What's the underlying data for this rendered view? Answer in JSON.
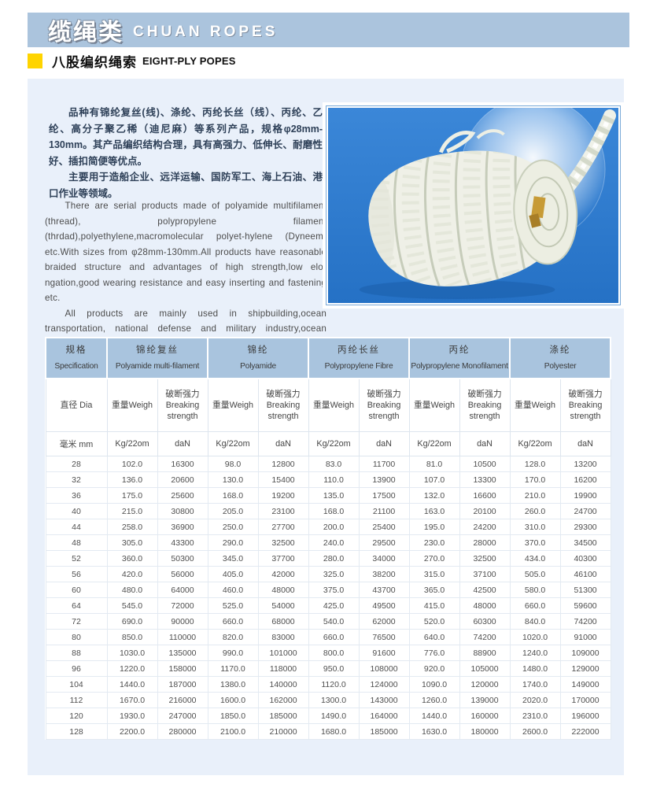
{
  "banner": {
    "title_zh": "缆绳类",
    "title_en": "CHUAN ROPES"
  },
  "section": {
    "title_zh": "八股编织绳索",
    "title_en": "EIGHT-PLY POPES"
  },
  "intro_zh": {
    "p1": "品种有锦纶复丝(线)、涤纶、丙纶长丝（线）、丙纶、乙纶、高分子聚乙稀（迪尼麻）等系列产品，规格φ28mm-130mm。其产品编织结构合理，具有高强力、低伸长、耐磨性好、插扣简便等优点。",
    "p2": "主要用于造船企业、远洋运输、国防军工、海上石油、港口作业等领域。"
  },
  "intro_en": {
    "p1": "There are serial products made of polyamide multifilament (thread), polypropylene filament (thrdad),polyethylene,macromolecular polyet-hylene (Dyneem) etc.With sizes from φ28mm-130mm.All products have reasonable braided structure and advantages of high strength,low elo-ngation,good wearing resistance and easy inserting and fastening etc.",
    "p2": "All products are mainly used in shipbuilding,ocean transportation, national defense and military industry,ocean petroleum,harbor works etc."
  },
  "photo": {
    "description": "coil of white eight-ply braided rope on blue background"
  },
  "colors": {
    "banner_bg": "#abc4dd",
    "panel_bg": "#e9f0fa",
    "table_header_bg": "#a9c4de",
    "marker_yellow": "#ffd400",
    "photo_blue": "#2e7ed2"
  },
  "table": {
    "spec_header": {
      "zh": "规格",
      "en": "Specification"
    },
    "groups": [
      {
        "zh": "锦纶复丝",
        "en": "Polyamide multi-filament"
      },
      {
        "zh": "锦纶",
        "en": "Polyamide"
      },
      {
        "zh": "丙纶长丝",
        "en": "Polypropylene Fibre"
      },
      {
        "zh": "丙纶",
        "en": "Polypropylene Monofilament"
      },
      {
        "zh": "涤纶",
        "en": "Polyester"
      }
    ],
    "sub_headers": {
      "dia": "直径 Dia",
      "weight": "重量Weigh",
      "breaking_zh": "破断强力",
      "breaking_en": "Breaking strength"
    },
    "units": {
      "dia": "毫米 mm",
      "weight": "Kg/22om",
      "breaking": "daN"
    },
    "rows": [
      [
        "28",
        "102.0",
        "16300",
        "98.0",
        "12800",
        "83.0",
        "11700",
        "81.0",
        "10500",
        "128.0",
        "13200"
      ],
      [
        "32",
        "136.0",
        "20600",
        "130.0",
        "15400",
        "110.0",
        "13900",
        "107.0",
        "13300",
        "170.0",
        "16200"
      ],
      [
        "36",
        "175.0",
        "25600",
        "168.0",
        "19200",
        "135.0",
        "17500",
        "132.0",
        "16600",
        "210.0",
        "19900"
      ],
      [
        "40",
        "215.0",
        "30800",
        "205.0",
        "23100",
        "168.0",
        "21100",
        "163.0",
        "20100",
        "260.0",
        "24700"
      ],
      [
        "44",
        "258.0",
        "36900",
        "250.0",
        "27700",
        "200.0",
        "25400",
        "195.0",
        "24200",
        "310.0",
        "29300"
      ],
      [
        "48",
        "305.0",
        "43300",
        "290.0",
        "32500",
        "240.0",
        "29500",
        "230.0",
        "28000",
        "370.0",
        "34500"
      ],
      [
        "52",
        "360.0",
        "50300",
        "345.0",
        "37700",
        "280.0",
        "34000",
        "270.0",
        "32500",
        "434.0",
        "40300"
      ],
      [
        "56",
        "420.0",
        "56000",
        "405.0",
        "42000",
        "325.0",
        "38200",
        "315.0",
        "37100",
        "505.0",
        "46100"
      ],
      [
        "60",
        "480.0",
        "64000",
        "460.0",
        "48000",
        "375.0",
        "43700",
        "365.0",
        "42500",
        "580.0",
        "51300"
      ],
      [
        "64",
        "545.0",
        "72000",
        "525.0",
        "54000",
        "425.0",
        "49500",
        "415.0",
        "48000",
        "660.0",
        "59600"
      ],
      [
        "72",
        "690.0",
        "90000",
        "660.0",
        "68000",
        "540.0",
        "62000",
        "520.0",
        "60300",
        "840.0",
        "74200"
      ],
      [
        "80",
        "850.0",
        "110000",
        "820.0",
        "83000",
        "660.0",
        "76500",
        "640.0",
        "74200",
        "1020.0",
        "91000"
      ],
      [
        "88",
        "1030.0",
        "135000",
        "990.0",
        "101000",
        "800.0",
        "91600",
        "776.0",
        "88900",
        "1240.0",
        "109000"
      ],
      [
        "96",
        "1220.0",
        "158000",
        "1170.0",
        "118000",
        "950.0",
        "108000",
        "920.0",
        "105000",
        "1480.0",
        "129000"
      ],
      [
        "104",
        "1440.0",
        "187000",
        "1380.0",
        "140000",
        "1120.0",
        "124000",
        "1090.0",
        "120000",
        "1740.0",
        "149000"
      ],
      [
        "112",
        "1670.0",
        "216000",
        "1600.0",
        "162000",
        "1300.0",
        "143000",
        "1260.0",
        "139000",
        "2020.0",
        "170000"
      ],
      [
        "120",
        "1930.0",
        "247000",
        "1850.0",
        "185000",
        "1490.0",
        "164000",
        "1440.0",
        "160000",
        "2310.0",
        "196000"
      ],
      [
        "128",
        "2200.0",
        "280000",
        "2100.0",
        "210000",
        "1680.0",
        "185000",
        "1630.0",
        "180000",
        "2600.0",
        "222000"
      ]
    ]
  }
}
